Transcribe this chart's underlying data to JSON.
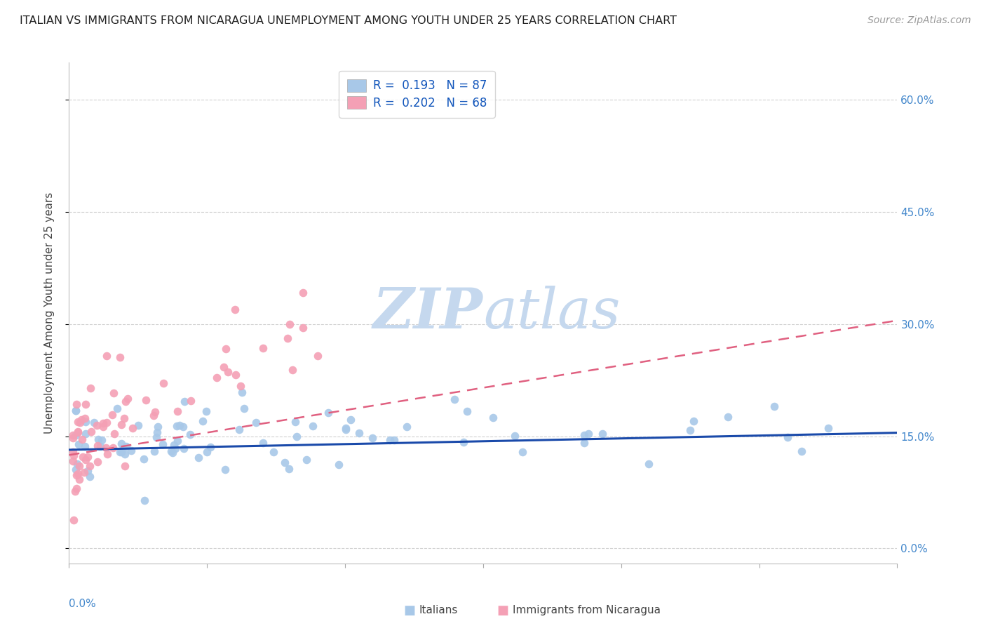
{
  "title": "ITALIAN VS IMMIGRANTS FROM NICARAGUA UNEMPLOYMENT AMONG YOUTH UNDER 25 YEARS CORRELATION CHART",
  "source": "Source: ZipAtlas.com",
  "ylabel": "Unemployment Among Youth under 25 years",
  "ytick_labels": [
    "0.0%",
    "15.0%",
    "30.0%",
    "45.0%",
    "60.0%"
  ],
  "ytick_values": [
    0.0,
    0.15,
    0.3,
    0.45,
    0.6
  ],
  "xlim": [
    0.0,
    0.6
  ],
  "ylim": [
    -0.02,
    0.65
  ],
  "legend_italian_R": "0.193",
  "legend_italian_N": "87",
  "legend_nicaragua_R": "0.202",
  "legend_nicaragua_N": "68",
  "legend_label_italian": "Italians",
  "legend_label_nicaragua": "Immigrants from Nicaragua",
  "color_italian": "#a8c8e8",
  "color_nicaragua": "#f4a0b5",
  "color_trendline_italian": "#1a4aaa",
  "color_trendline_nicaragua": "#e06080",
  "watermark_zip": "ZIP",
  "watermark_atlas": "atlas",
  "watermark_color_zip": "#c5d8ee",
  "watermark_color_atlas": "#c5d8ee",
  "background_color": "#ffffff",
  "title_fontsize": 11.5,
  "source_fontsize": 10,
  "ylabel_fontsize": 11,
  "tick_fontsize": 11,
  "legend_fontsize": 12
}
